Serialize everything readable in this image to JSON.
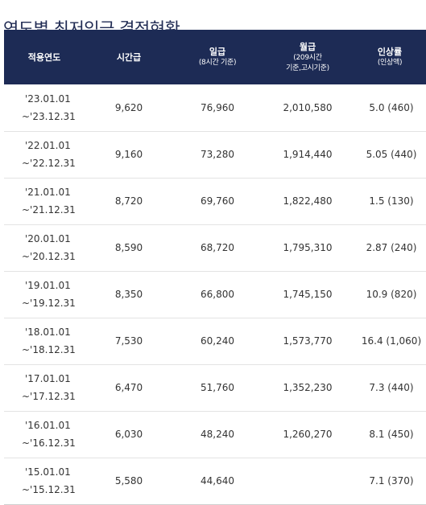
{
  "page": {
    "title": "연도별 최저임금 결정현황"
  },
  "table": {
    "headers": {
      "year": "적용연도",
      "hourly": "시간급",
      "daily": "일급",
      "daily_sub": "(8시간 기준)",
      "monthly": "월급",
      "monthly_sub_1": "(209시간",
      "monthly_sub_2": "기준,고시기준)",
      "rate": "인상률",
      "rate_sub": "(인상액)"
    },
    "rows": [
      {
        "start": "'23.01.01",
        "end": "~'23.12.31",
        "hourly": "9,620",
        "daily": "76,960",
        "monthly": "2,010,580",
        "rate": "5.0 (460)"
      },
      {
        "start": "'22.01.01",
        "end": "~'22.12.31",
        "hourly": "9,160",
        "daily": "73,280",
        "monthly": "1,914,440",
        "rate": "5.05 (440)"
      },
      {
        "start": "'21.01.01",
        "end": "~'21.12.31",
        "hourly": "8,720",
        "daily": "69,760",
        "monthly": "1,822,480",
        "rate": "1.5 (130)"
      },
      {
        "start": "'20.01.01",
        "end": "~'20.12.31",
        "hourly": "8,590",
        "daily": "68,720",
        "monthly": "1,795,310",
        "rate": "2.87 (240)"
      },
      {
        "start": "'19.01.01",
        "end": "~'19.12.31",
        "hourly": "8,350",
        "daily": "66,800",
        "monthly": "1,745,150",
        "rate": "10.9 (820)"
      },
      {
        "start": "'18.01.01",
        "end": "~'18.12.31",
        "hourly": "7,530",
        "daily": "60,240",
        "monthly": "1,573,770",
        "rate": "16.4 (1,060)"
      },
      {
        "start": "'17.01.01",
        "end": "~'17.12.31",
        "hourly": "6,470",
        "daily": "51,760",
        "monthly": "1,352,230",
        "rate": "7.3 (440)"
      },
      {
        "start": "'16.01.01",
        "end": "~'16.12.31",
        "hourly": "6,030",
        "daily": "48,240",
        "monthly": "1,260,270",
        "rate": "8.1 (450)"
      },
      {
        "start": "'15.01.01",
        "end": "~'15.12.31",
        "hourly": "5,580",
        "daily": "44,640",
        "monthly": "",
        "rate": "7.1 (370)"
      }
    ]
  },
  "colors": {
    "header_bg": "#1d2b55",
    "title": "#1f2a52",
    "text": "#333333",
    "row_border": "#e3e3e3"
  }
}
